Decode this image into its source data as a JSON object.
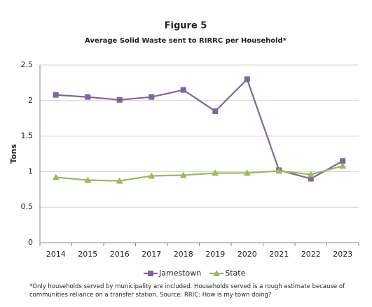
{
  "chart_data": {
    "type": "line",
    "title": "Figure 5",
    "subtitle": "Average Solid Waste sent to RIRRC per Household*",
    "y_label": "Tons",
    "categories": [
      "2014",
      "2015",
      "2016",
      "2017",
      "2018",
      "2019",
      "2020",
      "2021",
      "2022",
      "2023"
    ],
    "series": [
      {
        "name": "Jamestown",
        "color": "#8064a2",
        "marker": "square",
        "values": [
          2.08,
          2.05,
          2.01,
          2.05,
          2.15,
          1.85,
          2.3,
          1.02,
          0.9,
          1.15
        ]
      },
      {
        "name": "State",
        "color": "#9bbb59",
        "marker": "triangle",
        "values": [
          0.92,
          0.88,
          0.87,
          0.94,
          0.95,
          0.98,
          0.98,
          1.01,
          0.96,
          1.08
        ]
      }
    ],
    "ylim": [
      0,
      2.5
    ],
    "yticks": [
      0,
      0.5,
      1,
      1.5,
      2,
      2.5
    ],
    "grid": true,
    "legend": "bottom",
    "footnote": "*Only households served by municipality are included. Households served is a rough estimate because of communities reliance on a transfer station. Source: RRIC: How is my town doing?"
  }
}
